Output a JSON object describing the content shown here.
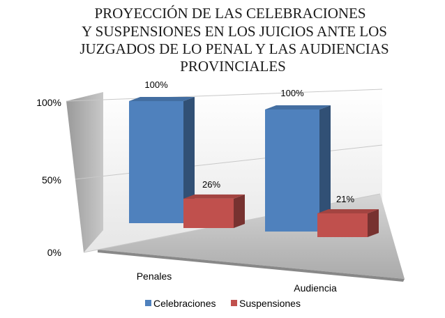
{
  "chart_data": {
    "type": "bar",
    "title_lines": [
      "PROYECCIÓN DE LAS CELEBRACIONES",
      "Y SUSPENSIONES EN LOS JUICIOS ANTE LOS",
      "JUZGADOS DE LO PENAL Y LAS AUDIENCIAS",
      "PROVINCIALES"
    ],
    "categories": [
      "Penales",
      "Audiencia"
    ],
    "series": [
      {
        "name": "Celebraciones",
        "values": [
          100,
          100
        ],
        "labels": [
          "100%",
          "100%"
        ],
        "color": "#4f81bd"
      },
      {
        "name": "Suspensiones",
        "values": [
          26,
          21
        ],
        "labels": [
          "26%",
          "21%"
        ],
        "color": "#c0504d"
      }
    ],
    "y_ticks": [
      "0%",
      "50%",
      "100%"
    ],
    "ylim": [
      0,
      100
    ],
    "grid": true,
    "legend_position": "bottom",
    "style": "3d-clustered-column"
  }
}
